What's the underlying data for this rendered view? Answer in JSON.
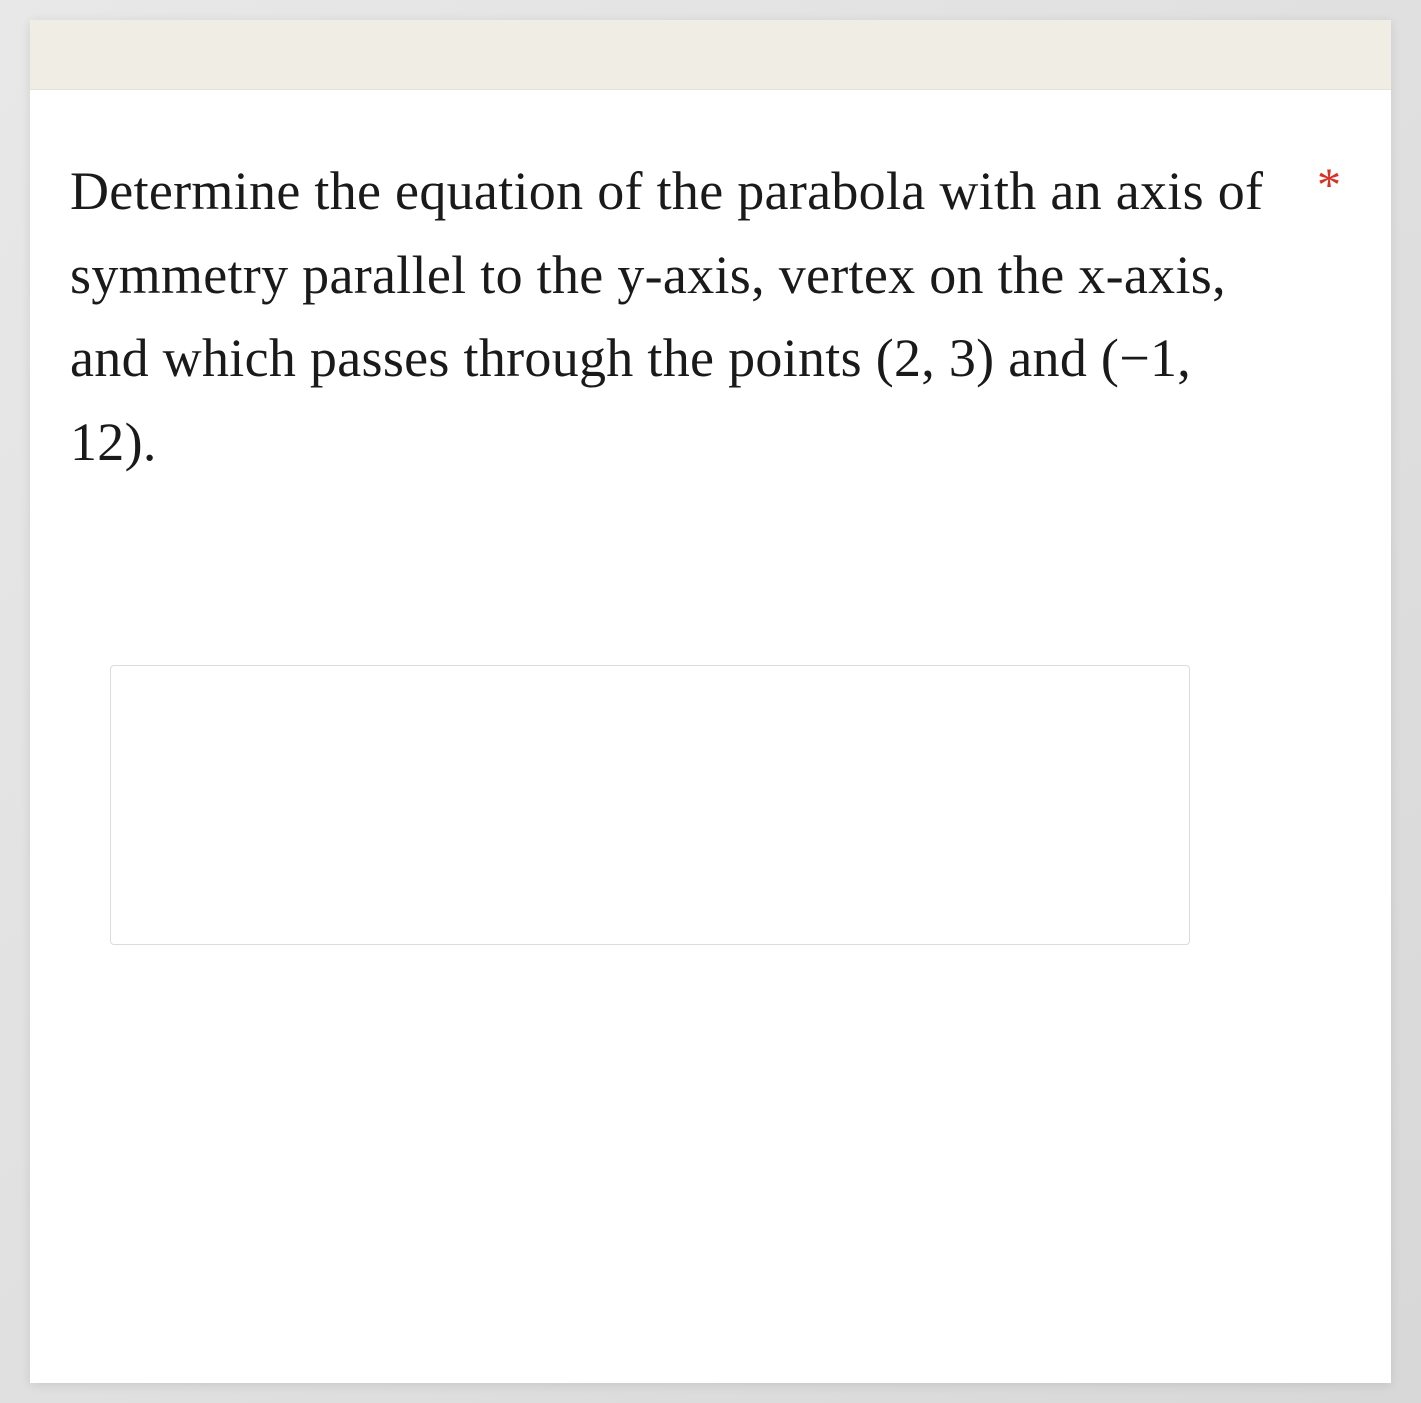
{
  "question": {
    "text": "Determine the equation of the parabola with an axis of symmetry parallel to the y-axis, vertex on the x-axis, and which passes through the points (2, 3) and (−1, 12).",
    "required_marker": "*"
  },
  "styling": {
    "background_color": "#ffffff",
    "topbar_color": "#f0ede4",
    "text_color": "#1a1a1a",
    "required_color": "#d93025",
    "font_family": "Georgia, serif",
    "question_fontsize": 54,
    "line_height": 1.55,
    "border_color": "#dadce0"
  }
}
